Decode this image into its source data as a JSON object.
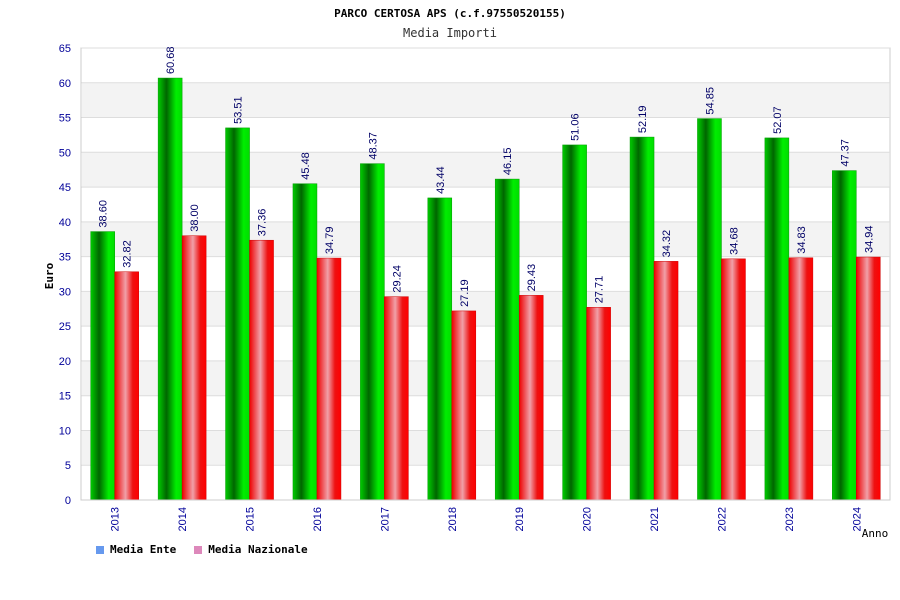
{
  "chart_data": {
    "type": "bar",
    "title": "PARCO CERTOSA APS (c.f.97550520155)",
    "subtitle": "Media Importi",
    "xlabel": "Anno",
    "ylabel": "Euro",
    "ylim": [
      0,
      65
    ],
    "yticks": [
      0,
      5,
      10,
      15,
      20,
      25,
      30,
      35,
      40,
      45,
      50,
      55,
      60,
      65
    ],
    "grid": true,
    "categories": [
      "2013",
      "2014",
      "2015",
      "2016",
      "2017",
      "2018",
      "2019",
      "2020",
      "2021",
      "2022",
      "2023",
      "2024"
    ],
    "series": [
      {
        "name": "Media Ente",
        "color": "#00cc00",
        "legend_color": "#6699ee",
        "values": [
          38.6,
          60.68,
          53.51,
          45.48,
          48.37,
          43.44,
          46.15,
          51.06,
          52.19,
          54.85,
          52.07,
          47.37
        ],
        "labels": [
          "38.60",
          "60.68",
          "53.51",
          "45.48",
          "48.37",
          "43.44",
          "46.15",
          "51.06",
          "52.19",
          "54.85",
          "52.07",
          "47.37"
        ]
      },
      {
        "name": "Media Nazionale",
        "color": "#ee1111",
        "legend_color": "#dd88bb",
        "values": [
          32.82,
          38.0,
          37.36,
          34.79,
          29.24,
          27.19,
          29.43,
          27.71,
          34.32,
          34.68,
          34.83,
          34.94
        ],
        "labels": [
          "32.82",
          "38.00",
          "37.36",
          "34.79",
          "29.24",
          "27.19",
          "29.43",
          "27.71",
          "34.32",
          "34.68",
          "34.83",
          "34.94"
        ]
      }
    ],
    "legend_position": "bottom-left"
  }
}
